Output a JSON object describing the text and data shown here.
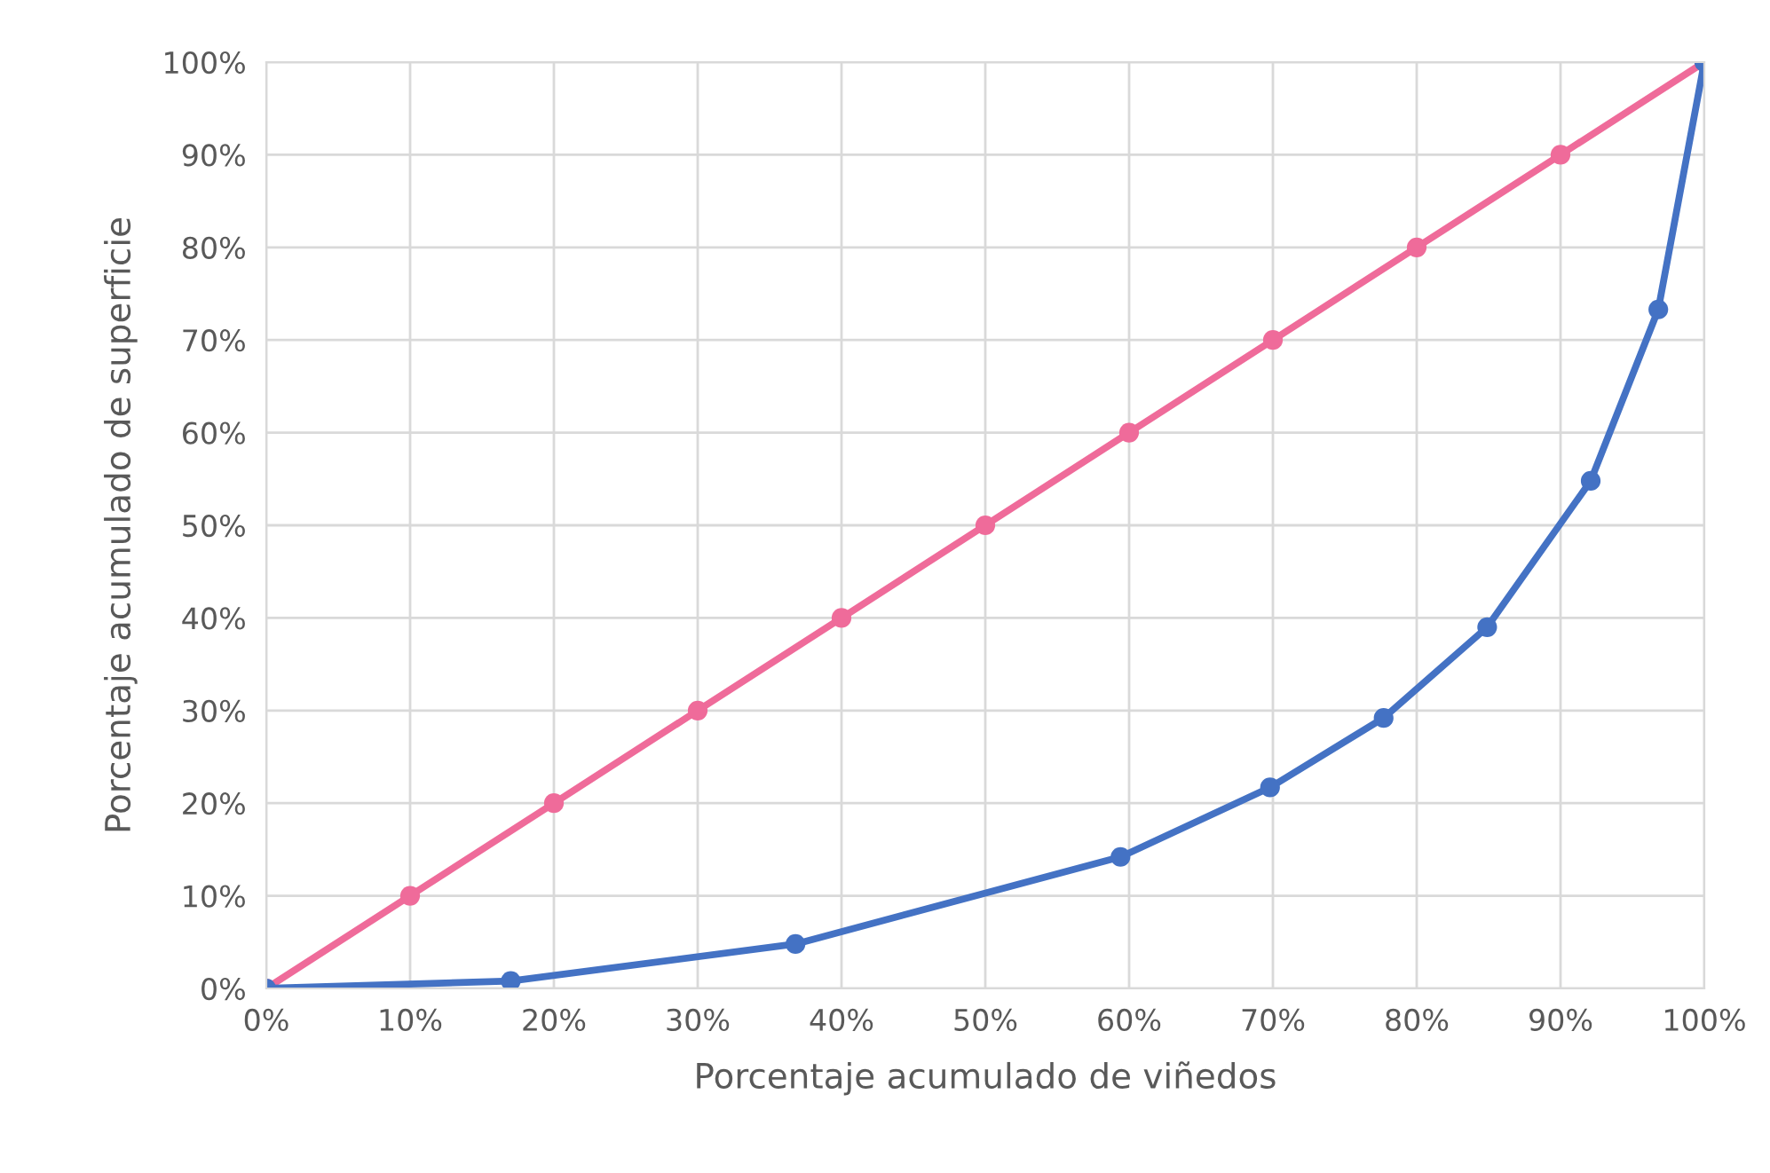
{
  "chart_data": {
    "type": "line",
    "xlabel": "Porcentaje acumulado de viñedos",
    "ylabel": "Porcentaje acumulado de superficie",
    "series": [
      {
        "color": "#ef6b9a",
        "x": [
          0,
          10,
          20,
          30,
          40,
          50,
          60,
          70,
          80,
          90,
          100
        ],
        "values": [
          0,
          10,
          20,
          30,
          40,
          50,
          60,
          70,
          80,
          90,
          100
        ]
      },
      {
        "color": "#4472c4",
        "x": [
          0,
          17,
          36.8,
          59.4,
          69.8,
          77.7,
          84.9,
          92.1,
          96.8,
          100
        ],
        "values": [
          0,
          0.8,
          4.8,
          14.2,
          21.7,
          29.2,
          39,
          54.8,
          73.3,
          100
        ]
      }
    ],
    "xlim": [
      0,
      100
    ],
    "ylim": [
      0,
      100
    ],
    "xticks": [
      {
        "value": 0,
        "label": "0%"
      },
      {
        "value": 10,
        "label": "10%"
      },
      {
        "value": 20,
        "label": "20%"
      },
      {
        "value": 30,
        "label": "30%"
      },
      {
        "value": 40,
        "label": "40%"
      },
      {
        "value": 50,
        "label": "50%"
      },
      {
        "value": 60,
        "label": "60%"
      },
      {
        "value": 70,
        "label": "70%"
      },
      {
        "value": 80,
        "label": "80%"
      },
      {
        "value": 90,
        "label": "90%"
      },
      {
        "value": 100,
        "label": "100%"
      }
    ],
    "yticks": [
      {
        "value": 0,
        "label": "0%"
      },
      {
        "value": 10,
        "label": "10%"
      },
      {
        "value": 20,
        "label": "20%"
      },
      {
        "value": 30,
        "label": "30%"
      },
      {
        "value": 40,
        "label": "40%"
      },
      {
        "value": 50,
        "label": "50%"
      },
      {
        "value": 60,
        "label": "60%"
      },
      {
        "value": 70,
        "label": "70%"
      },
      {
        "value": 80,
        "label": "80%"
      },
      {
        "value": 90,
        "label": "90%"
      },
      {
        "value": 100,
        "label": "100%"
      }
    ],
    "grid": true,
    "marker": "circle",
    "line_style": "solid"
  }
}
